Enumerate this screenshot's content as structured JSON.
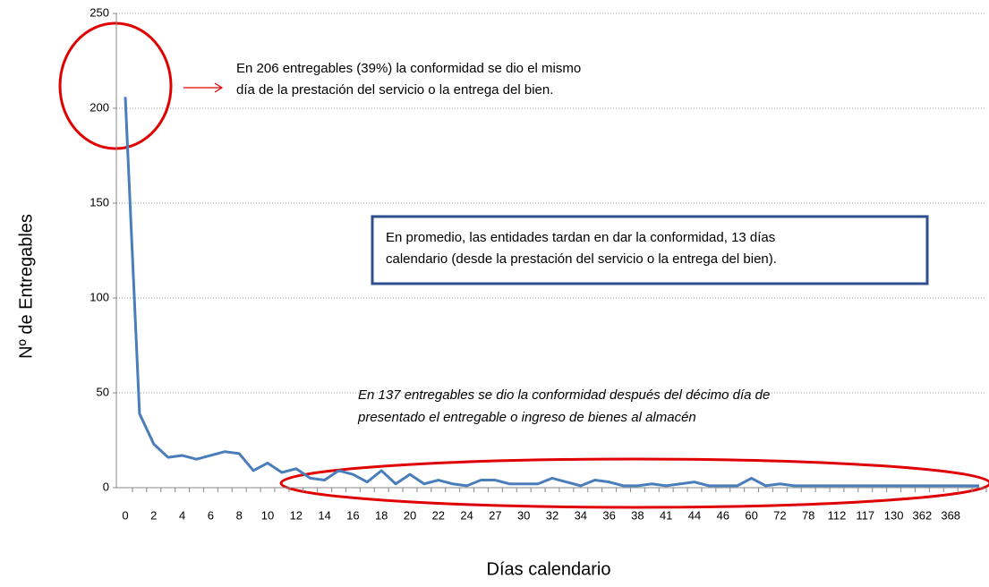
{
  "chart_data": {
    "type": "line",
    "x_label": "Días calendario",
    "y_label": "Nº de Entregables",
    "categories": [
      "0",
      null,
      "2",
      null,
      "4",
      null,
      "6",
      null,
      "8",
      null,
      "10",
      null,
      "12",
      null,
      "14",
      null,
      "16",
      null,
      "18",
      null,
      "20",
      null,
      "22",
      null,
      "24",
      null,
      "27",
      null,
      "30",
      null,
      "32",
      null,
      "34",
      null,
      "36",
      null,
      "38",
      null,
      "41",
      null,
      "44",
      null,
      "46",
      null,
      "60",
      null,
      "72",
      null,
      "78",
      null,
      "112",
      null,
      "117",
      null,
      "130",
      null,
      "362",
      null,
      "368",
      null,
      null
    ],
    "series": [
      {
        "name": "Entregables",
        "color": "#4a7ebb",
        "values": [
          206,
          39,
          23,
          16,
          17,
          15,
          17,
          19,
          18,
          9,
          13,
          8,
          10,
          5,
          4,
          9,
          7,
          3,
          9,
          2,
          7,
          2,
          4,
          2,
          1,
          4,
          4,
          2,
          2,
          2,
          5,
          3,
          1,
          4,
          3,
          1,
          1,
          2,
          1,
          2,
          3,
          1,
          1,
          1,
          5,
          1,
          2,
          1,
          1,
          1,
          1,
          1,
          1,
          1,
          1,
          1,
          1,
          1,
          1,
          1,
          1
        ]
      }
    ],
    "ylim": [
      0,
      250
    ],
    "yticks": [
      0,
      50,
      100,
      150,
      200,
      250
    ],
    "grid": true,
    "annotations": [
      "En 206 entregables (39%) la conformidad se dio el mismo",
      "día de la prestación del servicio o la entrega del bien.",
      "En promedio, las entidades tardan en dar la conformidad, 13 días",
      "calendario (desde la prestación del servicio o la entrega del bien).",
      "En  137 entregables se dio la conformidad después del décimo día de",
      "presentado el entregable o ingreso de bienes al almacén"
    ]
  }
}
